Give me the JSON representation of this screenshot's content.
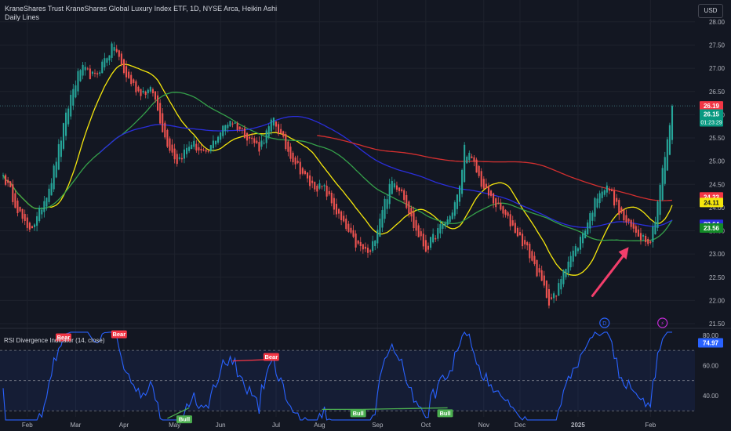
{
  "header": {
    "title": "KraneShares Trust KraneShares Global Luxury Index ETF, 1D, NYSE Arca, Heikin Ashi",
    "indicator": "Daily Lines",
    "currency": "USD"
  },
  "chart_data": [
    {
      "type": "candlestick",
      "style": "Heikin Ashi",
      "ylim": [
        21.45,
        28.1
      ],
      "y_ticks": [
        "28.00",
        "27.50",
        "27.00",
        "26.50",
        "26.00",
        "25.50",
        "25.00",
        "24.50",
        "24.00",
        "23.50",
        "23.00",
        "22.50",
        "22.00",
        "21.50"
      ],
      "x_ticks": [
        "Feb",
        "Mar",
        "Apr",
        "May",
        "Jun",
        "Jul",
        "Aug",
        "Sep",
        "Oct",
        "Nov",
        "Dec",
        "2025",
        "Feb"
      ],
      "anchors": [
        [
          0,
          24.7
        ],
        [
          10,
          23.5
        ],
        [
          14,
          23.75
        ],
        [
          20,
          24.6
        ],
        [
          28,
          26.4
        ],
        [
          32,
          27.0
        ],
        [
          38,
          26.8
        ],
        [
          42,
          27.2
        ],
        [
          46,
          27.5
        ],
        [
          50,
          26.9
        ],
        [
          56,
          26.5
        ],
        [
          62,
          26.5
        ],
        [
          67,
          25.5
        ],
        [
          72,
          25.0
        ],
        [
          78,
          25.4
        ],
        [
          84,
          25.1
        ],
        [
          88,
          25.5
        ],
        [
          94,
          25.9
        ],
        [
          100,
          25.6
        ],
        [
          106,
          25.3
        ],
        [
          112,
          25.9
        ],
        [
          117,
          25.3
        ],
        [
          122,
          24.9
        ],
        [
          127,
          24.5
        ],
        [
          133,
          24.4
        ],
        [
          140,
          23.7
        ],
        [
          146,
          23.2
        ],
        [
          152,
          23.0
        ],
        [
          157,
          24.0
        ],
        [
          161,
          24.55
        ],
        [
          165,
          24.4
        ],
        [
          170,
          23.6
        ],
        [
          175,
          23.1
        ],
        [
          180,
          23.5
        ],
        [
          185,
          23.8
        ],
        [
          189,
          24.4
        ],
        [
          191,
          25.3
        ],
        [
          195,
          24.9
        ],
        [
          199,
          24.4
        ],
        [
          205,
          24.0
        ],
        [
          211,
          23.6
        ],
        [
          217,
          23.1
        ],
        [
          222,
          22.5
        ],
        [
          226,
          22.0
        ],
        [
          229,
          22.1
        ],
        [
          232,
          22.7
        ],
        [
          238,
          23.2
        ],
        [
          242,
          23.7
        ],
        [
          247,
          24.4
        ],
        [
          251,
          24.4
        ],
        [
          255,
          23.9
        ],
        [
          259,
          23.6
        ],
        [
          264,
          23.4
        ],
        [
          268,
          23.3
        ],
        [
          270,
          23.8
        ],
        [
          272,
          24.5
        ],
        [
          275,
          25.4
        ],
        [
          277,
          26.19
        ]
      ],
      "last_price": "26.15",
      "countdown": "01:23:29",
      "price_labels": [
        {
          "value": "26.19",
          "color": "#f23645",
          "price": 26.19,
          "text_color": "#ffffff"
        },
        {
          "value": "24.23",
          "color": "#f23645",
          "price": 24.23,
          "text_color": "#ffffff"
        },
        {
          "value": "24.11",
          "color": "#f5e70c",
          "price": 24.11,
          "text_color": "#131722"
        },
        {
          "value": "23.64",
          "color": "#2a2edb",
          "price": 23.64,
          "text_color": "#ffffff"
        },
        {
          "value": "23.56",
          "color": "#138a27",
          "price": 23.56,
          "text_color": "#ffffff"
        }
      ],
      "moving_averages": [
        {
          "color": "#f5e70c",
          "period": 20
        },
        {
          "color": "#35a14a",
          "period": 50
        },
        {
          "color": "#2a2edb",
          "period": 100
        },
        {
          "color": "#d32f2f",
          "period": 200
        }
      ],
      "annotations": [
        {
          "type": "arrow",
          "color": "#f23e6b",
          "from_index": 244,
          "to_index": 259,
          "to_price": 23.15
        },
        {
          "type": "event-icon",
          "label": "D",
          "index": 249,
          "color": "#2962ff"
        },
        {
          "type": "event-icon",
          "label": "⚡",
          "index": 273,
          "color": "#c62bd9"
        }
      ]
    },
    {
      "type": "line",
      "title": "RSI Divergence Indicator (14, close)",
      "ylim": [
        30,
        80
      ],
      "y_ticks": [
        "80.00",
        "60.00",
        "40.00"
      ],
      "upper_band": 70,
      "lower_band": 30,
      "current_value": "74.97",
      "signals": [
        {
          "label": "Bear",
          "index": 25,
          "value": 75,
          "kind": "bear"
        },
        {
          "label": "Bear",
          "index": 48,
          "value": 77,
          "kind": "bear"
        },
        {
          "label": "Bear",
          "index": 111,
          "value": 62,
          "kind": "bear"
        },
        {
          "label": "Bull",
          "index": 75,
          "value": 28,
          "kind": "bull"
        },
        {
          "label": "Bull",
          "index": 147,
          "value": 32,
          "kind": "bull"
        },
        {
          "label": "Bull",
          "index": 183,
          "value": 32,
          "kind": "bull"
        }
      ],
      "divergence_lines": [
        {
          "from": [
            95,
            63
          ],
          "to": [
            111,
            64
          ],
          "color": "#f23645"
        },
        {
          "from": [
            68,
            25
          ],
          "to": [
            77,
            32
          ],
          "color": "#4caf50"
        },
        {
          "from": [
            132,
            31
          ],
          "to": [
            149,
            31
          ],
          "color": "#4caf50"
        },
        {
          "from": [
            149,
            31
          ],
          "to": [
            184,
            32
          ],
          "color": "#4caf50"
        }
      ]
    }
  ]
}
